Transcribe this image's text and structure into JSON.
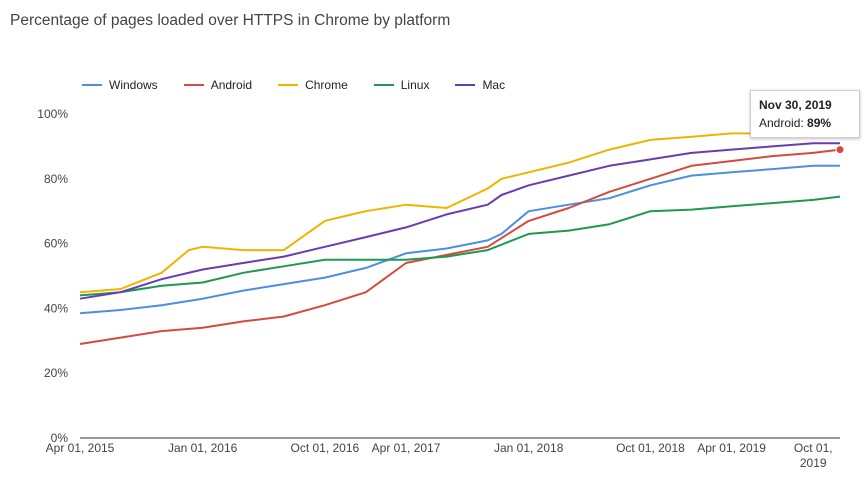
{
  "title": "Percentage of pages loaded over HTTPS in Chrome by platform",
  "tooltip": {
    "date": "Nov 30, 2019",
    "series": "Android:",
    "value": "89%"
  },
  "chart_data": {
    "type": "line",
    "title": "Percentage of pages loaded over HTTPS in Chrome by platform",
    "xlabel": "",
    "ylabel": "",
    "ylim": [
      0,
      100
    ],
    "xlim": [
      "2015-04-01",
      "2019-11-30"
    ],
    "y_ticks": [
      "0%",
      "20%",
      "40%",
      "60%",
      "80%",
      "100%"
    ],
    "y_tick_values": [
      0,
      20,
      40,
      60,
      80,
      100
    ],
    "x_ticks": [
      {
        "label": "Apr 01, 2015",
        "date": "2015-04-01"
      },
      {
        "label": "Jan 01, 2016",
        "date": "2016-01-01"
      },
      {
        "label": "Oct 01, 2016",
        "date": "2016-10-01"
      },
      {
        "label": "Apr 01, 2017",
        "date": "2017-04-01"
      },
      {
        "label": "Jan 01, 2018",
        "date": "2018-01-01"
      },
      {
        "label": "Oct 01, 2018",
        "date": "2018-10-01"
      },
      {
        "label": "Apr 01, 2019",
        "date": "2019-04-01"
      },
      {
        "label": "Oct 01,",
        "label2": "2019",
        "date": "2019-10-01"
      }
    ],
    "grid": false,
    "legend": "top-left",
    "series": [
      {
        "name": "Windows",
        "color": "#4a8fe2",
        "x": [
          "2015-04-01",
          "2015-07-01",
          "2015-10-01",
          "2016-01-01",
          "2016-04-01",
          "2016-07-01",
          "2016-10-01",
          "2017-01-01",
          "2017-04-01",
          "2017-07-01",
          "2017-10-01",
          "2017-11-01",
          "2018-01-01",
          "2018-04-01",
          "2018-07-01",
          "2018-10-01",
          "2019-01-01",
          "2019-04-01",
          "2019-07-01",
          "2019-10-01",
          "2019-11-30"
        ],
        "values": [
          38.5,
          39.5,
          41,
          43,
          45.5,
          47.5,
          49.5,
          52.5,
          57,
          58.5,
          61,
          63,
          70,
          72,
          74,
          78,
          81,
          82,
          83,
          84,
          84
        ]
      },
      {
        "name": "Android",
        "color": "#d44b3d",
        "x": [
          "2015-04-01",
          "2015-07-01",
          "2015-10-01",
          "2016-01-01",
          "2016-04-01",
          "2016-07-01",
          "2016-10-01",
          "2017-01-01",
          "2017-04-01",
          "2017-07-01",
          "2017-10-01",
          "2018-01-01",
          "2018-04-01",
          "2018-07-01",
          "2018-10-01",
          "2019-01-01",
          "2019-04-01",
          "2019-07-01",
          "2019-10-01",
          "2019-11-30"
        ],
        "values": [
          29,
          31,
          33,
          34,
          36,
          37.5,
          41,
          45,
          54,
          56.5,
          59,
          67,
          71,
          76,
          80,
          84,
          85.5,
          87,
          88,
          89
        ]
      },
      {
        "name": "Chrome",
        "color": "#f0b400",
        "x": [
          "2015-04-01",
          "2015-07-01",
          "2015-10-01",
          "2015-12-01",
          "2016-01-01",
          "2016-04-01",
          "2016-07-01",
          "2016-10-01",
          "2016-12-01",
          "2017-01-01",
          "2017-04-01",
          "2017-07-01",
          "2017-10-01",
          "2017-11-01",
          "2018-01-01",
          "2018-04-01",
          "2018-07-01",
          "2018-10-01",
          "2019-01-01",
          "2019-04-01",
          "2019-07-01",
          "2019-10-01"
        ],
        "values": [
          45,
          46,
          51,
          58,
          59,
          58,
          58,
          67,
          69,
          70,
          72,
          71,
          77,
          80,
          82,
          85,
          89,
          92,
          93,
          94,
          94,
          96
        ]
      },
      {
        "name": "Linux",
        "color": "#1f9950",
        "x": [
          "2015-04-01",
          "2015-07-01",
          "2015-10-01",
          "2016-01-01",
          "2016-04-01",
          "2016-07-01",
          "2016-10-01",
          "2017-01-01",
          "2017-04-01",
          "2017-07-01",
          "2017-10-01",
          "2018-01-01",
          "2018-04-01",
          "2018-07-01",
          "2018-10-01",
          "2019-01-01",
          "2019-04-01",
          "2019-07-01",
          "2019-10-01",
          "2019-11-30"
        ],
        "values": [
          44,
          45,
          47,
          48,
          51,
          53,
          55,
          55,
          55,
          56,
          58,
          63,
          64,
          66,
          70,
          70.5,
          71.5,
          72.5,
          73.5,
          74.5
        ]
      },
      {
        "name": "Mac",
        "color": "#6a3cb2",
        "x": [
          "2015-04-01",
          "2015-07-01",
          "2015-10-01",
          "2016-01-01",
          "2016-04-01",
          "2016-07-01",
          "2016-10-01",
          "2017-01-01",
          "2017-04-01",
          "2017-07-01",
          "2017-10-01",
          "2017-11-01",
          "2018-01-01",
          "2018-04-01",
          "2018-07-01",
          "2018-10-01",
          "2019-01-01",
          "2019-04-01",
          "2019-07-01",
          "2019-10-01",
          "2019-11-30"
        ],
        "values": [
          43,
          45,
          49,
          52,
          54,
          56,
          59,
          62,
          65,
          69,
          72,
          75,
          78,
          81,
          84,
          86,
          88,
          89,
          90,
          91,
          91
        ]
      }
    ]
  }
}
